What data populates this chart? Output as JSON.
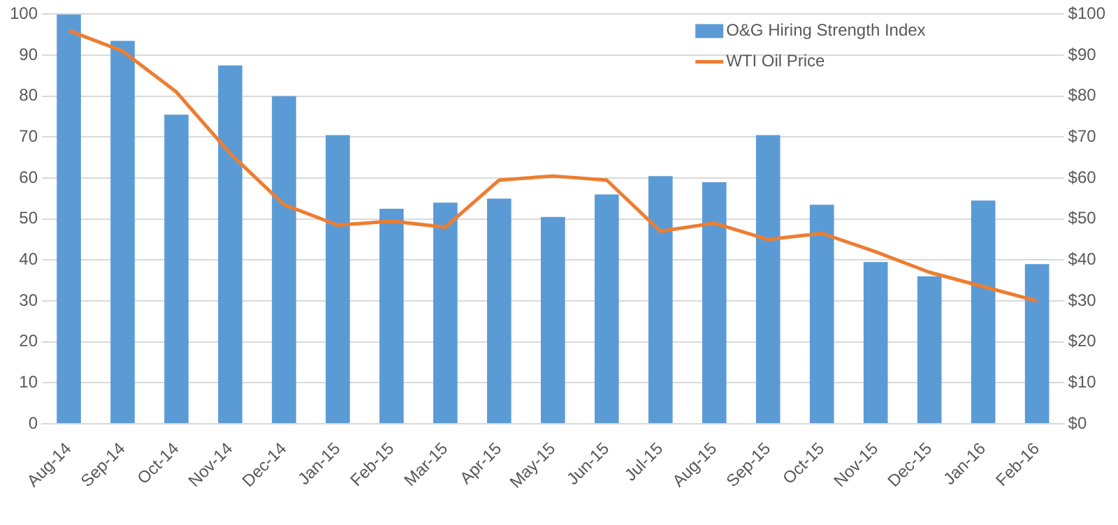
{
  "chart_data": {
    "type": "bar",
    "categories": [
      "Aug-14",
      "Sep-14",
      "Oct-14",
      "Nov-14",
      "Dec-14",
      "Jan-15",
      "Feb-15",
      "Mar-15",
      "Apr-15",
      "May-15",
      "Jun-15",
      "Jul-15",
      "Aug-15",
      "Sep-15",
      "Oct-15",
      "Nov-15",
      "Dec-15",
      "Jan-16",
      "Feb-16"
    ],
    "series": [
      {
        "name": "O&G Hiring Strength Index",
        "color": "#5b9bd5",
        "values": [
          100,
          93.5,
          75.5,
          87.5,
          80,
          70.5,
          52.5,
          54,
          55,
          50.5,
          56,
          60.5,
          59,
          70.5,
          53.5,
          39.5,
          36,
          54.5,
          39
        ]
      },
      {
        "name": "WTI Oil Price",
        "type": "line",
        "axis": "y2",
        "color": "#ed7d31",
        "values": [
          96,
          91,
          81,
          66,
          53.5,
          48.5,
          49.5,
          48,
          59.5,
          60.5,
          59.5,
          47,
          49,
          45,
          46.5,
          42,
          37,
          33.5,
          30
        ]
      }
    ],
    "ylim": [
      0,
      100
    ],
    "yticks": [
      0,
      10,
      20,
      30,
      40,
      50,
      60,
      70,
      80,
      90,
      100
    ],
    "y2lim": [
      0,
      100
    ],
    "y2ticks": [
      {
        "value": 0,
        "label": "$0"
      },
      {
        "value": 10,
        "label": "$10"
      },
      {
        "value": 20,
        "label": "$20"
      },
      {
        "value": 30,
        "label": "$30"
      },
      {
        "value": 40,
        "label": "$40"
      },
      {
        "value": 50,
        "label": "$50"
      },
      {
        "value": 60,
        "label": "$60"
      },
      {
        "value": 70,
        "label": "$70"
      },
      {
        "value": 80,
        "label": "$80"
      },
      {
        "value": 90,
        "label": "$90"
      },
      {
        "value": 100,
        "label": "$100"
      }
    ],
    "grid": "y",
    "legend": "top right",
    "marker": "none"
  }
}
